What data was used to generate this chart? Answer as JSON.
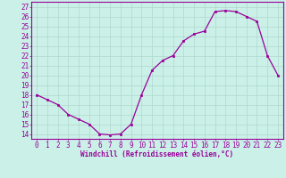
{
  "x": [
    0,
    1,
    2,
    3,
    4,
    5,
    6,
    7,
    8,
    9,
    10,
    11,
    12,
    13,
    14,
    15,
    16,
    17,
    18,
    19,
    20,
    21,
    22,
    23
  ],
  "y": [
    18,
    17.5,
    17,
    16,
    15.5,
    15,
    14,
    13.9,
    14,
    15,
    18,
    20.5,
    21.5,
    22,
    23.5,
    24.2,
    24.5,
    26.5,
    26.6,
    26.5,
    26,
    25.5,
    22,
    20
  ],
  "xlabel": "Windchill (Refroidissement éolien,°C)",
  "xlim": [
    -0.5,
    23.5
  ],
  "ylim": [
    13.5,
    27.5
  ],
  "bg_color": "#caf0e8",
  "grid_color": "#b0d8cc",
  "line_color": "#990099",
  "xtick_labels": [
    "0",
    "1",
    "2",
    "3",
    "4",
    "5",
    "6",
    "7",
    "8",
    "9",
    "10",
    "11",
    "12",
    "13",
    "14",
    "15",
    "16",
    "17",
    "18",
    "19",
    "20",
    "21",
    "22",
    "23"
  ],
  "ytick_labels": [
    "14",
    "15",
    "16",
    "17",
    "18",
    "19",
    "20",
    "21",
    "22",
    "23",
    "24",
    "25",
    "26",
    "27"
  ],
  "ytick_values": [
    14,
    15,
    16,
    17,
    18,
    19,
    20,
    21,
    22,
    23,
    24,
    25,
    26,
    27
  ],
  "tick_fontsize": 5.5,
  "xlabel_fontsize": 5.5
}
